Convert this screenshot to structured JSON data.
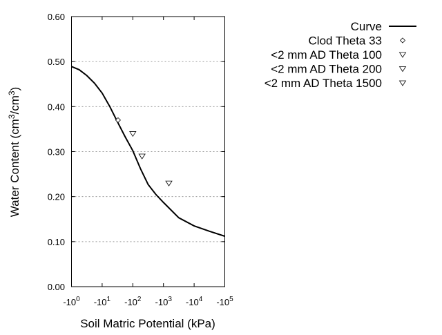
{
  "chart_data": {
    "type": "line",
    "title": "",
    "xlabel": "Soil Matric Potential (kPa)",
    "ylabel": {
      "prefix": "Water Content (cm",
      "sup1": "3",
      "mid": "/cm",
      "sup2": "3",
      "suffix": ")"
    },
    "x_scale": "log",
    "xlim": [
      1,
      100000
    ],
    "ylim": [
      0,
      0.6
    ],
    "x_ticks": [
      {
        "base": "-10",
        "exp": "0",
        "value": 1
      },
      {
        "base": "-10",
        "exp": "1",
        "value": 10
      },
      {
        "base": "-10",
        "exp": "2",
        "value": 100
      },
      {
        "base": "-10",
        "exp": "3",
        "value": 1000
      },
      {
        "base": "-10",
        "exp": "4",
        "value": 10000
      },
      {
        "base": "-10",
        "exp": "5",
        "value": 100000
      }
    ],
    "y_ticks": [
      "0.00",
      "0.10",
      "0.20",
      "0.30",
      "0.40",
      "0.50",
      "0.60"
    ],
    "grid": "horizontal dotted",
    "legend_position": "right",
    "series": [
      {
        "name": "Curve",
        "style": "line",
        "color": "#000000",
        "x": [
          1,
          1.78,
          3.16,
          5.62,
          10,
          17.8,
          31.6,
          56.2,
          100,
          178,
          316,
          562,
          1000,
          3162,
          10000,
          31623,
          100000
        ],
        "y": [
          0.489,
          0.482,
          0.469,
          0.452,
          0.43,
          0.4,
          0.366,
          0.333,
          0.302,
          0.262,
          0.227,
          0.205,
          0.187,
          0.153,
          0.135,
          0.123,
          0.112
        ]
      },
      {
        "name": "Clod Theta 33",
        "style": "diamond",
        "x": [
          33
        ],
        "y": [
          0.37
        ]
      },
      {
        "name": "<2 mm AD Theta 100",
        "style": "triangle-down",
        "x": [
          100
        ],
        "y": [
          0.34
        ]
      },
      {
        "name": "<2 mm AD Theta 200",
        "style": "triangle-down",
        "x": [
          200
        ],
        "y": [
          0.29
        ]
      },
      {
        "name": "<2 mm AD Theta 1500",
        "style": "triangle-down",
        "x": [
          1500
        ],
        "y": [
          0.23
        ]
      }
    ]
  }
}
